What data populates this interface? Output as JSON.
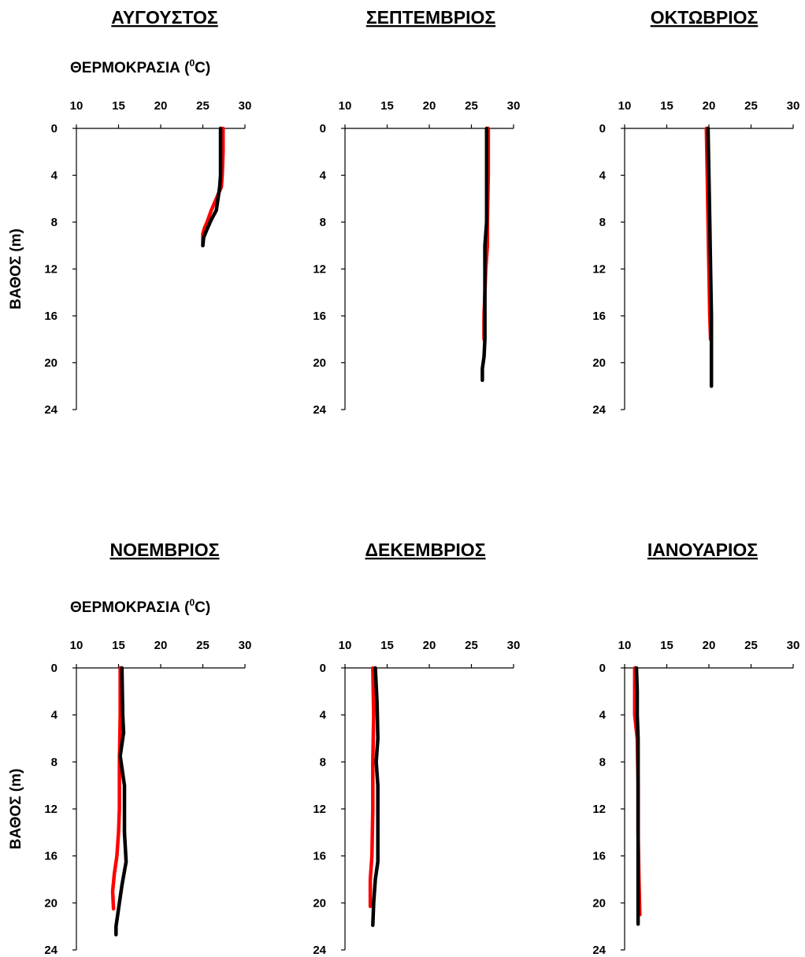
{
  "xlabel": "ΘΕΡΜΟΚΡΑΣΙΑ (",
  "xlabel_sup": "0",
  "xlabel_unit": "C)",
  "ylabel": "ΒΑΘΟΣ (m)",
  "colors": {
    "series_red": "#ff0000",
    "series_black": "#000000",
    "axis": "#000000"
  },
  "chart_data": [
    {
      "type": "line",
      "title": "ΑΥΓΟΥΣΤΟΣ",
      "xlim": [
        10,
        30
      ],
      "ylim": [
        0,
        24
      ],
      "y_inverted": true,
      "xticks": [
        10,
        15,
        20,
        25,
        30
      ],
      "yticks": [
        0,
        4,
        8,
        12,
        16,
        20,
        24
      ],
      "show_xlabel": true,
      "show_ylabel": true,
      "series": [
        {
          "color": "#ff0000",
          "points": [
            [
              27.4,
              0
            ],
            [
              27.4,
              2
            ],
            [
              27.3,
              4
            ],
            [
              27.2,
              5
            ],
            [
              26.6,
              6
            ],
            [
              26.0,
              7
            ],
            [
              25.5,
              8
            ],
            [
              25.2,
              8.5
            ],
            [
              25.0,
              9
            ],
            [
              25.0,
              10
            ]
          ]
        },
        {
          "color": "#000000",
          "points": [
            [
              27.1,
              0
            ],
            [
              27.1,
              2
            ],
            [
              27.1,
              4
            ],
            [
              27.0,
              5
            ],
            [
              26.8,
              6
            ],
            [
              26.6,
              7
            ],
            [
              26.0,
              7.8
            ],
            [
              25.5,
              8.6
            ],
            [
              25.1,
              9.3
            ],
            [
              25.0,
              10
            ]
          ]
        }
      ]
    },
    {
      "type": "line",
      "title": "ΣΕΠΤΕΜΒΡΙΟΣ",
      "xlim": [
        10,
        30
      ],
      "ylim": [
        0,
        24
      ],
      "y_inverted": true,
      "xticks": [
        10,
        15,
        20,
        25,
        30
      ],
      "yticks": [
        0,
        4,
        8,
        12,
        16,
        20,
        24
      ],
      "show_xlabel": false,
      "show_ylabel": false,
      "series": [
        {
          "color": "#ff0000",
          "points": [
            [
              27.0,
              0
            ],
            [
              27.0,
              4
            ],
            [
              26.9,
              8
            ],
            [
              26.9,
              10
            ],
            [
              26.7,
              12
            ],
            [
              26.6,
              14
            ],
            [
              26.5,
              16
            ],
            [
              26.5,
              18
            ]
          ]
        },
        {
          "color": "#000000",
          "points": [
            [
              26.8,
              0
            ],
            [
              26.8,
              4
            ],
            [
              26.8,
              8
            ],
            [
              26.6,
              10
            ],
            [
              26.6,
              12
            ],
            [
              26.6,
              14
            ],
            [
              26.6,
              16
            ],
            [
              26.6,
              18
            ],
            [
              26.5,
              19.5
            ],
            [
              26.3,
              20.5
            ],
            [
              26.3,
              21.5
            ]
          ]
        }
      ]
    },
    {
      "type": "line",
      "title": "ΟΚΤΩΒΡΙΟΣ",
      "xlim": [
        10,
        30
      ],
      "ylim": [
        0,
        24
      ],
      "y_inverted": true,
      "xticks": [
        10,
        15,
        20,
        25,
        30
      ],
      "yticks": [
        0,
        4,
        8,
        12,
        16,
        20,
        24
      ],
      "show_xlabel": false,
      "show_ylabel": false,
      "series": [
        {
          "color": "#ff0000",
          "points": [
            [
              19.7,
              0
            ],
            [
              19.8,
              4
            ],
            [
              19.9,
              8
            ],
            [
              20.0,
              12
            ],
            [
              20.1,
              16
            ],
            [
              20.2,
              18
            ]
          ]
        },
        {
          "color": "#000000",
          "points": [
            [
              19.9,
              0
            ],
            [
              20.0,
              4
            ],
            [
              20.1,
              8
            ],
            [
              20.2,
              12
            ],
            [
              20.3,
              16
            ],
            [
              20.3,
              18
            ],
            [
              20.3,
              20
            ],
            [
              20.3,
              22
            ]
          ]
        }
      ]
    },
    {
      "type": "line",
      "title": "ΝΟΕΜΒΡΙΟΣ",
      "xlim": [
        10,
        30
      ],
      "ylim": [
        0,
        24
      ],
      "y_inverted": true,
      "xticks": [
        10,
        15,
        20,
        25,
        30
      ],
      "yticks": [
        0,
        4,
        8,
        12,
        16,
        20,
        24
      ],
      "show_xlabel": true,
      "show_ylabel": true,
      "series": [
        {
          "color": "#ff0000",
          "points": [
            [
              15.2,
              0
            ],
            [
              15.2,
              4
            ],
            [
              15.1,
              8
            ],
            [
              15.1,
              12
            ],
            [
              15.0,
              14
            ],
            [
              14.8,
              16
            ],
            [
              14.5,
              17.5
            ],
            [
              14.3,
              19
            ],
            [
              14.4,
              20.5
            ]
          ]
        },
        {
          "color": "#000000",
          "points": [
            [
              15.4,
              0
            ],
            [
              15.5,
              4
            ],
            [
              15.6,
              5.5
            ],
            [
              15.2,
              7.5
            ],
            [
              15.7,
              10
            ],
            [
              15.7,
              14
            ],
            [
              15.9,
              16.5
            ],
            [
              15.4,
              18.5
            ],
            [
              15.0,
              20.5
            ],
            [
              14.7,
              22
            ],
            [
              14.7,
              22.7
            ]
          ]
        }
      ]
    },
    {
      "type": "line",
      "title": "ΔΕΚΕΜΒΡΙΟΣ",
      "xlim": [
        10,
        30
      ],
      "ylim": [
        0,
        24
      ],
      "y_inverted": true,
      "xticks": [
        10,
        15,
        20,
        25,
        30
      ],
      "yticks": [
        0,
        4,
        8,
        12,
        16,
        20,
        24
      ],
      "show_xlabel": false,
      "show_ylabel": false,
      "series": [
        {
          "color": "#ff0000",
          "points": [
            [
              13.3,
              0
            ],
            [
              13.4,
              4
            ],
            [
              13.3,
              8
            ],
            [
              13.3,
              12
            ],
            [
              13.2,
              16
            ],
            [
              13.0,
              18
            ],
            [
              13.0,
              20.3
            ]
          ]
        },
        {
          "color": "#000000",
          "points": [
            [
              13.6,
              0
            ],
            [
              13.8,
              3
            ],
            [
              13.9,
              6
            ],
            [
              13.7,
              8
            ],
            [
              13.9,
              10
            ],
            [
              13.9,
              14
            ],
            [
              13.9,
              16.5
            ],
            [
              13.6,
              18
            ],
            [
              13.4,
              20
            ],
            [
              13.3,
              21.9
            ]
          ]
        }
      ]
    },
    {
      "type": "line",
      "title": "ΙΑΝΟΥΑΡΙΟΣ",
      "xlim": [
        10,
        30
      ],
      "ylim": [
        0,
        24
      ],
      "y_inverted": true,
      "xticks": [
        10,
        15,
        20,
        25,
        30
      ],
      "yticks": [
        0,
        4,
        8,
        12,
        16,
        20,
        24
      ],
      "show_xlabel": false,
      "show_ylabel": false,
      "series": [
        {
          "color": "#ff0000",
          "points": [
            [
              11.2,
              0
            ],
            [
              11.2,
              2
            ],
            [
              11.2,
              4
            ],
            [
              11.5,
              6
            ],
            [
              11.6,
              10
            ],
            [
              11.6,
              14
            ],
            [
              11.7,
              18
            ],
            [
              11.8,
              21
            ]
          ]
        },
        {
          "color": "#000000",
          "points": [
            [
              11.4,
              0
            ],
            [
              11.5,
              2
            ],
            [
              11.5,
              4
            ],
            [
              11.6,
              6
            ],
            [
              11.6,
              10
            ],
            [
              11.6,
              14
            ],
            [
              11.6,
              18
            ],
            [
              11.6,
              21.8
            ]
          ]
        }
      ]
    }
  ]
}
